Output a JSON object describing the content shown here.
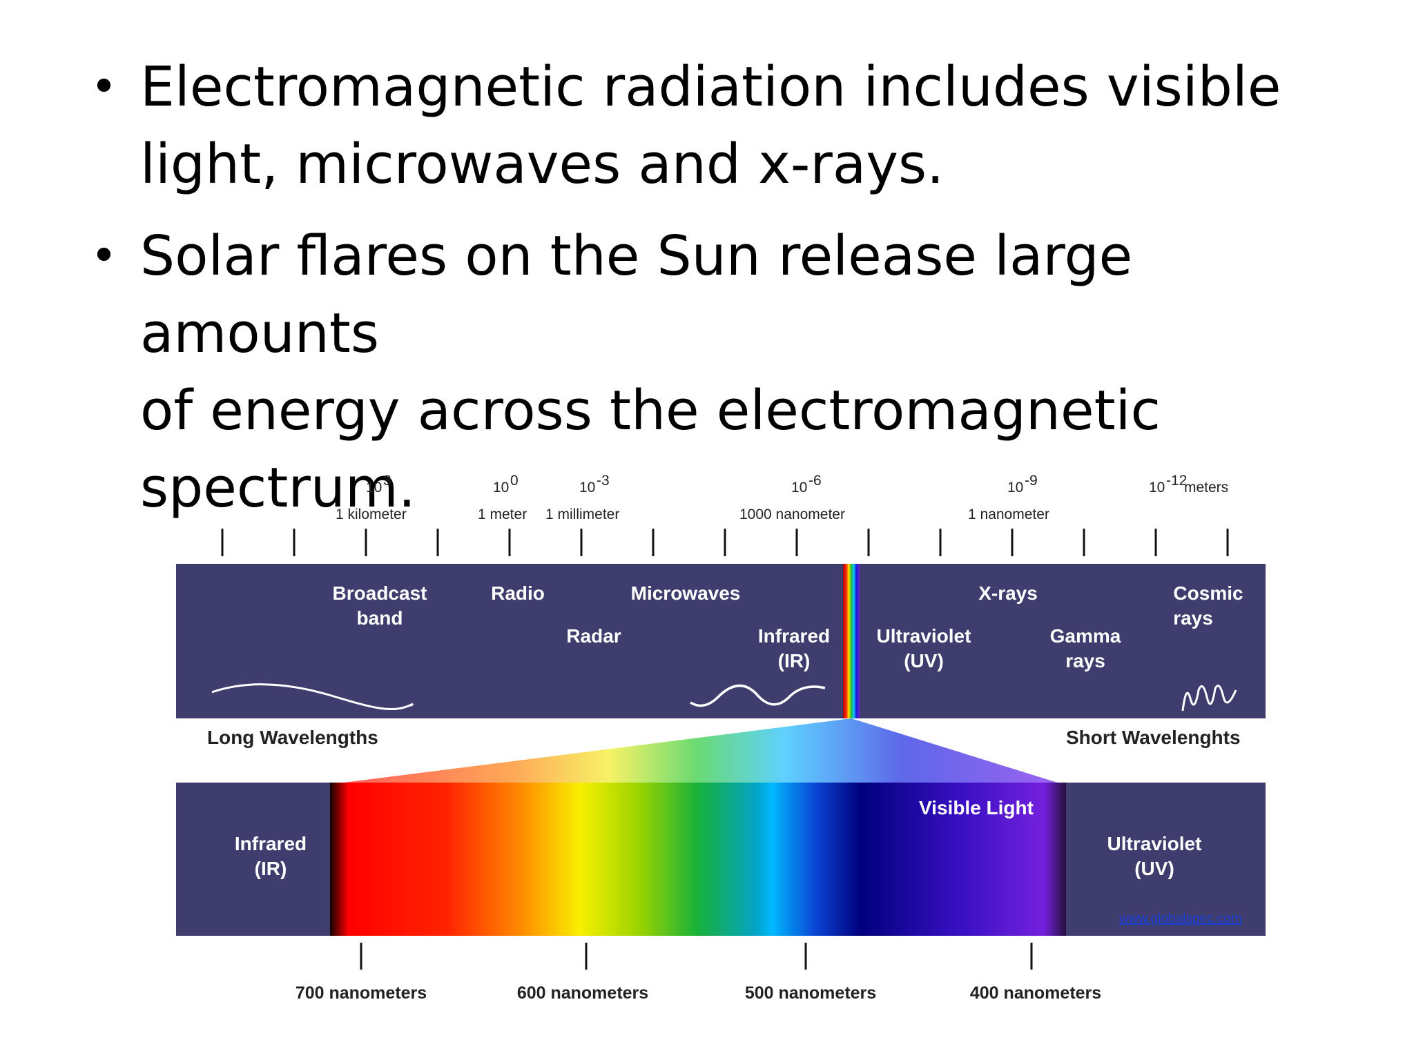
{
  "bullets": [
    {
      "line1": "Electromagnetic radiation includes visible",
      "line2": "light, microwaves and x-rays."
    },
    {
      "line1": "Solar flares on the Sun release large amounts",
      "line2": "of energy across the electromagnetic",
      "line3": "spectrum."
    }
  ],
  "scale": {
    "exponents": [
      "10",
      "10",
      "10",
      "10",
      "10",
      "10"
    ],
    "powers": [
      "3",
      "0",
      "-3",
      "-6",
      "-9",
      "-12"
    ],
    "units": [
      "1 kilometer",
      "1 meter",
      "1 millimeter",
      "1000 nanometer",
      "1 nanometer",
      "meters"
    ]
  },
  "bands": {
    "broadcast": [
      "Broadcast",
      "band"
    ],
    "radio": "Radio",
    "microwaves": "Microwaves",
    "radar": "Radar",
    "infrared": [
      "Infrared",
      "(IR)"
    ],
    "ultraviolet": [
      "Ultraviolet",
      "(UV)"
    ],
    "xrays": "X-rays",
    "gamma": [
      "Gamma",
      "rays"
    ],
    "cosmic": [
      "Cosmic",
      "rays"
    ]
  },
  "long_wavelengths": "Long Wavelengths",
  "short_wavelengths": "Short Wavelenghts",
  "visible": {
    "title": "Visible Light",
    "infrared": [
      "Infrared",
      "(IR)"
    ],
    "ultraviolet": [
      "Ultraviolet",
      "(UV)"
    ],
    "nm_labels": [
      "700 nanometers",
      "600 nanometers",
      "500 nanometers",
      "400 nanometers"
    ]
  },
  "credit": "www.globalspec.com",
  "colors": {
    "band_bg": "#3e3d6e",
    "text": "#000000",
    "link": "#1a3fd6"
  }
}
